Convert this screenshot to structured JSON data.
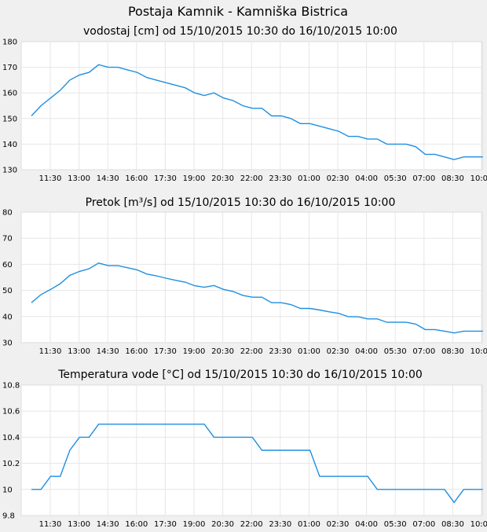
{
  "page": {
    "title": "Postaja Kamnik - Kamniška Bistrica"
  },
  "x_ticks": [
    "11:30",
    "13:00",
    "14:30",
    "16:00",
    "17:30",
    "19:00",
    "20:30",
    "22:00",
    "23:30",
    "01:00",
    "02:30",
    "04:00",
    "05:30",
    "07:00",
    "08:30",
    "10:00"
  ],
  "colors": {
    "line": "#1e8fe0",
    "plot_bg": "#ffffff",
    "page_bg": "#f0f0f0"
  },
  "chart_data": [
    {
      "type": "line",
      "title": "vodostaj [cm] od 15/10/2015 10:30 do 16/10/2015 10:00",
      "xlabel": "",
      "ylabel": "",
      "x_start": "15/10/2015 10:30",
      "x_step_minutes": 30,
      "ylim": [
        130,
        180
      ],
      "y_ticks": [
        "130",
        "140",
        "150",
        "160",
        "170",
        "180"
      ],
      "grid": true,
      "series": [
        {
          "values": [
            151,
            155,
            158,
            161,
            165,
            167,
            168,
            171,
            170,
            170,
            169,
            168,
            166,
            165,
            164,
            163,
            162,
            160,
            159,
            160,
            158,
            157,
            155,
            154,
            154,
            151,
            151,
            150,
            148,
            148,
            147,
            146,
            145,
            143,
            143,
            142,
            142,
            140,
            140,
            140,
            139,
            136,
            136,
            135,
            134,
            135,
            135,
            135
          ]
        }
      ]
    },
    {
      "type": "line",
      "title": "Pretok [m³/s] od 15/10/2015 10:30 do 16/10/2015 10:00",
      "xlabel": "",
      "ylabel": "",
      "x_start": "15/10/2015 10:30",
      "x_step_minutes": 30,
      "ylim": [
        30,
        80
      ],
      "y_ticks": [
        "30",
        "40",
        "50",
        "60",
        "70",
        "80"
      ],
      "grid": true,
      "series": [
        {
          "values": [
            45.3,
            48.4,
            50.4,
            52.6,
            55.8,
            57.3,
            58.3,
            60.5,
            59.5,
            59.5,
            58.7,
            57.9,
            56.3,
            55.6,
            54.7,
            53.9,
            53.2,
            51.8,
            51.2,
            51.9,
            50.4,
            49.6,
            48.1,
            47.4,
            47.4,
            45.3,
            45.3,
            44.6,
            43.1,
            43.1,
            42.5,
            41.8,
            41.2,
            39.9,
            39.9,
            39.1,
            39.1,
            37.8,
            37.8,
            37.8,
            37.1,
            35.0,
            35.0,
            34.4,
            33.7,
            34.4,
            34.4,
            34.4
          ]
        }
      ]
    },
    {
      "type": "line",
      "title": "Temperatura vode [°C] od 15/10/2015 10:30 do 16/10/2015 10:00",
      "xlabel": "",
      "ylabel": "",
      "x_start": "15/10/2015 10:30",
      "x_step_minutes": 30,
      "ylim": [
        9.8,
        10.8
      ],
      "y_ticks": [
        "9.8",
        "10",
        "10.2",
        "10.4",
        "10.6",
        "10.8"
      ],
      "grid": true,
      "series": [
        {
          "values": [
            10.0,
            10.0,
            10.1,
            10.1,
            10.3,
            10.4,
            10.4,
            10.5,
            10.5,
            10.5,
            10.5,
            10.5,
            10.5,
            10.5,
            10.5,
            10.5,
            10.5,
            10.5,
            10.5,
            10.4,
            10.4,
            10.4,
            10.4,
            10.4,
            10.3,
            10.3,
            10.3,
            10.3,
            10.3,
            10.3,
            10.1,
            10.1,
            10.1,
            10.1,
            10.1,
            10.1,
            10.0,
            10.0,
            10.0,
            10.0,
            10.0,
            10.0,
            10.0,
            10.0,
            9.9,
            10.0,
            10.0,
            10.0
          ]
        }
      ]
    }
  ]
}
